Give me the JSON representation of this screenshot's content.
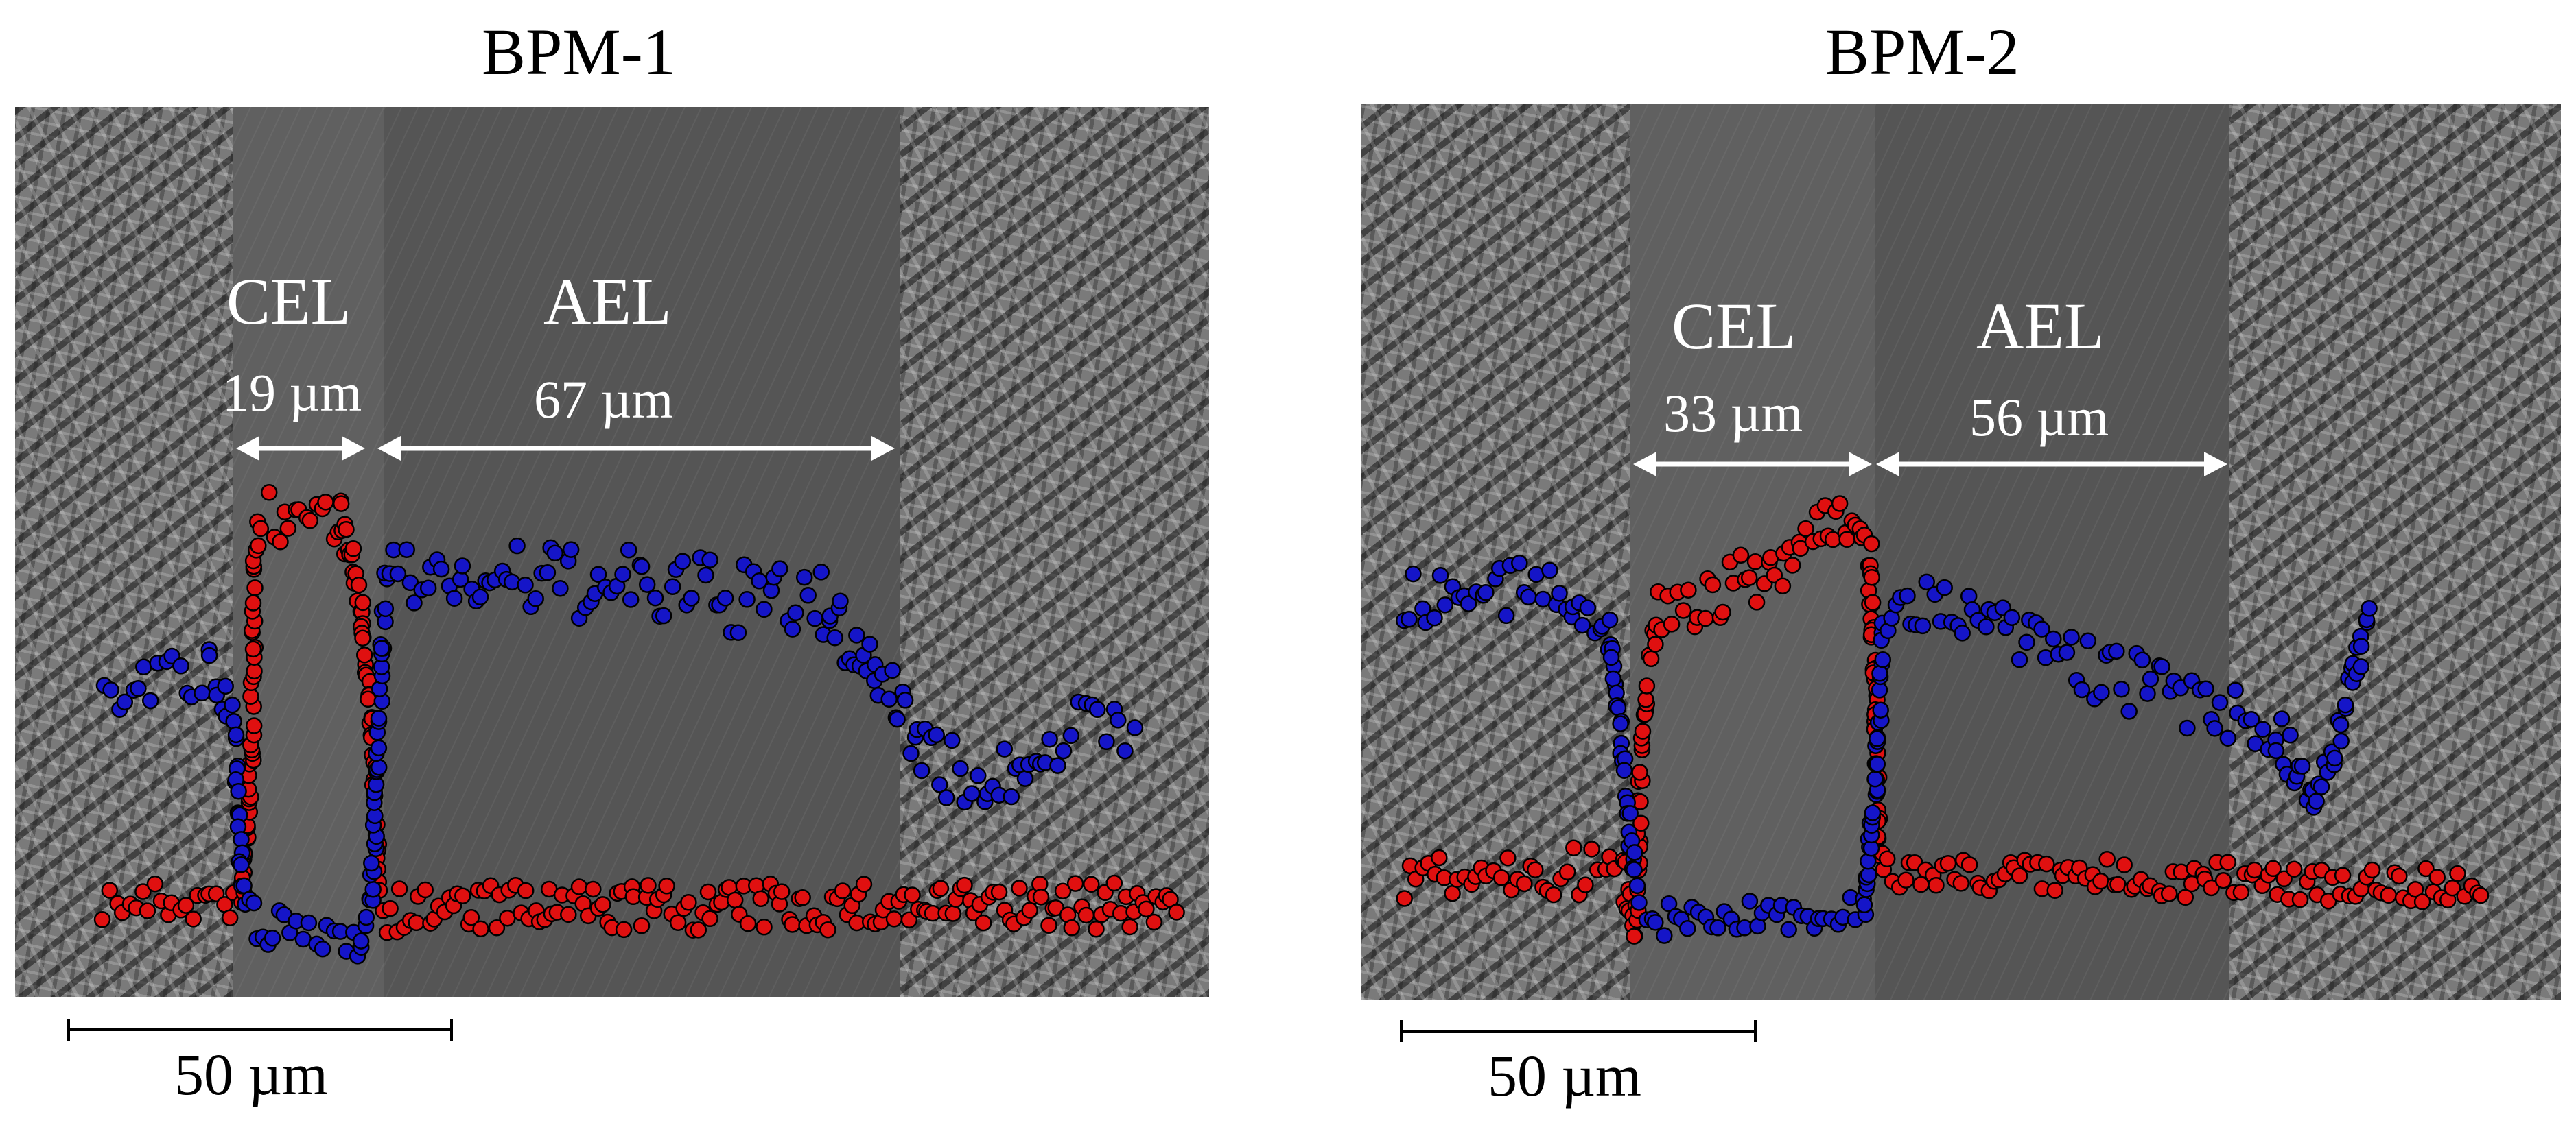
{
  "panels": [
    {
      "title": "BPM-1",
      "cel_label": "CEL",
      "cel_thickness": "19 µm",
      "ael_label": "AEL",
      "ael_thickness": "67 µm",
      "scale_bar": "50 µm"
    },
    {
      "title": "BPM-2",
      "cel_label": "CEL",
      "cel_thickness": "33 µm",
      "ael_label": "AEL",
      "ael_thickness": "56 µm",
      "scale_bar": "50 µm"
    }
  ],
  "colors": {
    "red_series": "#e01010",
    "blue_series": "#1515c8",
    "arrow": "#ffffff"
  }
}
